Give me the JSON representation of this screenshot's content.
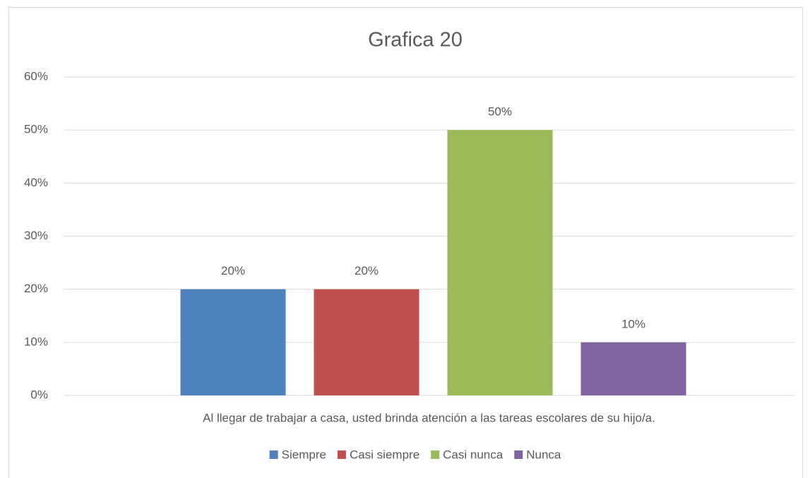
{
  "chart_data": {
    "type": "bar",
    "title": "Grafica 20",
    "categories": [
      "Al llegar de trabajar a casa, usted brinda atención a las tareas escolares de su hijo/a."
    ],
    "series": [
      {
        "name": "Siempre",
        "color": "#4f81bd",
        "values": [
          20
        ],
        "value_labels": [
          "20%"
        ]
      },
      {
        "name": "Casi siempre",
        "color": "#c0504d",
        "values": [
          20
        ],
        "value_labels": [
          "20%"
        ]
      },
      {
        "name": "Casi nunca",
        "color": "#9bbb59",
        "values": [
          50
        ],
        "value_labels": [
          "50%"
        ]
      },
      {
        "name": "Nunca",
        "color": "#8064a2",
        "values": [
          10
        ],
        "value_labels": [
          "10%"
        ]
      }
    ],
    "ylim": [
      0,
      60
    ],
    "yticks": [
      {
        "value": 0,
        "label": "0%"
      },
      {
        "value": 10,
        "label": "10%"
      },
      {
        "value": 20,
        "label": "20%"
      },
      {
        "value": 30,
        "label": "30%"
      },
      {
        "value": 40,
        "label": "40%"
      },
      {
        "value": 50,
        "label": "50%"
      },
      {
        "value": 60,
        "label": "60%"
      }
    ],
    "grid": true,
    "legend": "bottom"
  }
}
